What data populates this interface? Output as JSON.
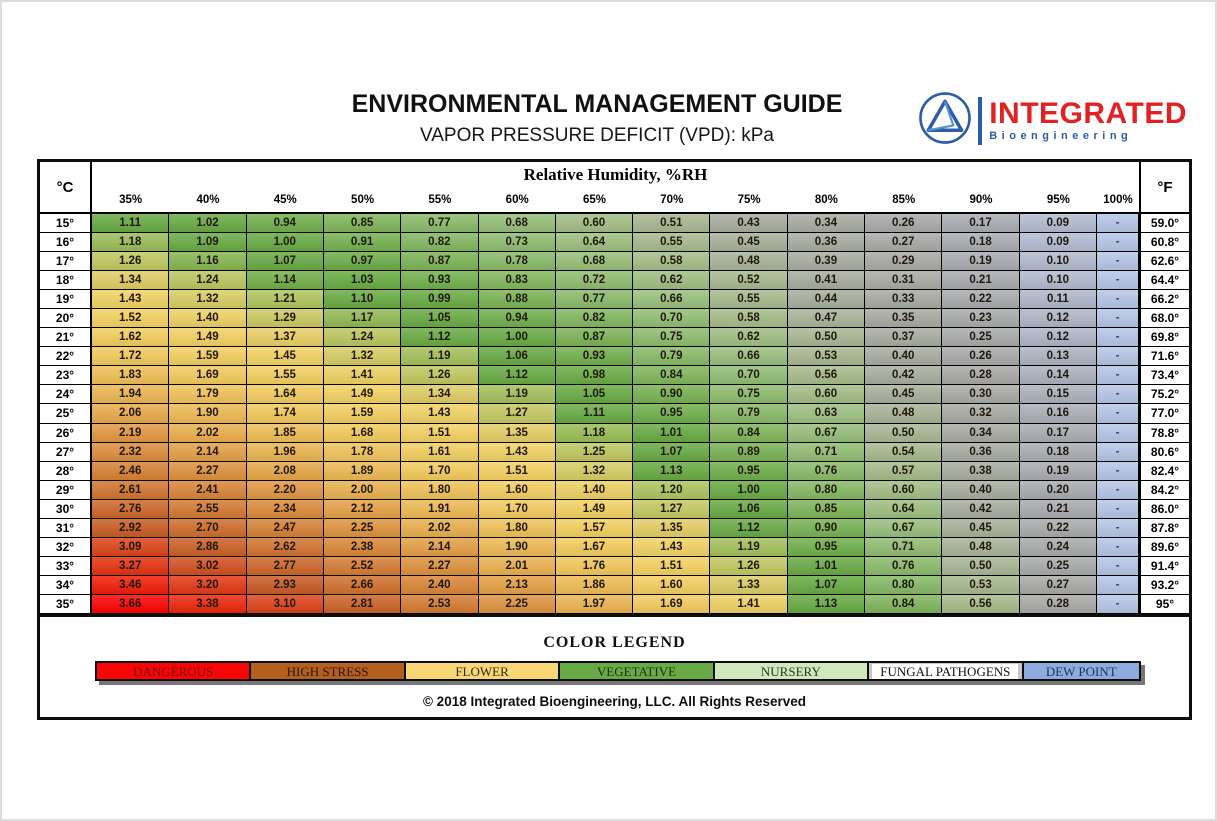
{
  "header": {
    "title": "ENVIRONMENTAL MANAGEMENT GUIDE",
    "subtitle": "VAPOR PRESSURE DEFICIT (VPD): kPa",
    "logo": {
      "name": "INTEGRATED",
      "sub": "Bioengineering",
      "brand_red": "#e22121",
      "brand_blue": "#2b5da8"
    }
  },
  "table": {
    "corner_left": "°C",
    "corner_right": "°F",
    "group_header": "Relative Humidity, %RH"
  },
  "chart_data": {
    "type": "heatmap",
    "title": "ENVIRONMENTAL MANAGEMENT GUIDE",
    "subtitle": "VAPOR PRESSURE DEFICIT (VPD): kPa",
    "x_axis_label": "Relative Humidity, %RH",
    "y_axis_left_label": "°C",
    "y_axis_right_label": "°F",
    "unit": "kPa",
    "columns": [
      "35%",
      "40%",
      "45%",
      "50%",
      "55%",
      "60%",
      "65%",
      "70%",
      "75%",
      "80%",
      "85%",
      "90%",
      "95%",
      "100%"
    ],
    "rows": [
      {
        "c": "15°",
        "f": "59.0°",
        "values": [
          "1.11",
          "1.02",
          "0.94",
          "0.85",
          "0.77",
          "0.68",
          "0.60",
          "0.51",
          "0.43",
          "0.34",
          "0.26",
          "0.17",
          "0.09",
          "-"
        ]
      },
      {
        "c": "16°",
        "f": "60.8°",
        "values": [
          "1.18",
          "1.09",
          "1.00",
          "0.91",
          "0.82",
          "0.73",
          "0.64",
          "0.55",
          "0.45",
          "0.36",
          "0.27",
          "0.18",
          "0.09",
          "-"
        ]
      },
      {
        "c": "17°",
        "f": "62.6°",
        "values": [
          "1.26",
          "1.16",
          "1.07",
          "0.97",
          "0.87",
          "0.78",
          "0.68",
          "0.58",
          "0.48",
          "0.39",
          "0.29",
          "0.19",
          "0.10",
          "-"
        ]
      },
      {
        "c": "18°",
        "f": "64.4°",
        "values": [
          "1.34",
          "1.24",
          "1.14",
          "1.03",
          "0.93",
          "0.83",
          "0.72",
          "0.62",
          "0.52",
          "0.41",
          "0.31",
          "0.21",
          "0.10",
          "-"
        ]
      },
      {
        "c": "19°",
        "f": "66.2°",
        "values": [
          "1.43",
          "1.32",
          "1.21",
          "1.10",
          "0.99",
          "0.88",
          "0.77",
          "0.66",
          "0.55",
          "0.44",
          "0.33",
          "0.22",
          "0.11",
          "-"
        ]
      },
      {
        "c": "20°",
        "f": "68.0°",
        "values": [
          "1.52",
          "1.40",
          "1.29",
          "1.17",
          "1.05",
          "0.94",
          "0.82",
          "0.70",
          "0.58",
          "0.47",
          "0.35",
          "0.23",
          "0.12",
          "-"
        ]
      },
      {
        "c": "21°",
        "f": "69.8°",
        "values": [
          "1.62",
          "1.49",
          "1.37",
          "1.24",
          "1.12",
          "1.00",
          "0.87",
          "0.75",
          "0.62",
          "0.50",
          "0.37",
          "0.25",
          "0.12",
          "-"
        ]
      },
      {
        "c": "22°",
        "f": "71.6°",
        "values": [
          "1.72",
          "1.59",
          "1.45",
          "1.32",
          "1.19",
          "1.06",
          "0.93",
          "0.79",
          "0.66",
          "0.53",
          "0.40",
          "0.26",
          "0.13",
          "-"
        ]
      },
      {
        "c": "23°",
        "f": "73.4°",
        "values": [
          "1.83",
          "1.69",
          "1.55",
          "1.41",
          "1.26",
          "1.12",
          "0.98",
          "0.84",
          "0.70",
          "0.56",
          "0.42",
          "0.28",
          "0.14",
          "-"
        ]
      },
      {
        "c": "24°",
        "f": "75.2°",
        "values": [
          "1.94",
          "1.79",
          "1.64",
          "1.49",
          "1.34",
          "1.19",
          "1.05",
          "0.90",
          "0.75",
          "0.60",
          "0.45",
          "0.30",
          "0.15",
          "-"
        ]
      },
      {
        "c": "25°",
        "f": "77.0°",
        "values": [
          "2.06",
          "1.90",
          "1.74",
          "1.59",
          "1.43",
          "1.27",
          "1.11",
          "0.95",
          "0.79",
          "0.63",
          "0.48",
          "0.32",
          "0.16",
          "-"
        ]
      },
      {
        "c": "26°",
        "f": "78.8°",
        "values": [
          "2.19",
          "2.02",
          "1.85",
          "1.68",
          "1.51",
          "1.35",
          "1.18",
          "1.01",
          "0.84",
          "0.67",
          "0.50",
          "0.34",
          "0.17",
          "-"
        ]
      },
      {
        "c": "27°",
        "f": "80.6°",
        "values": [
          "2.32",
          "2.14",
          "1.96",
          "1.78",
          "1.61",
          "1.43",
          "1.25",
          "1.07",
          "0.89",
          "0.71",
          "0.54",
          "0.36",
          "0.18",
          "-"
        ]
      },
      {
        "c": "28°",
        "f": "82.4°",
        "values": [
          "2.46",
          "2.27",
          "2.08",
          "1.89",
          "1.70",
          "1.51",
          "1.32",
          "1.13",
          "0.95",
          "0.76",
          "0.57",
          "0.38",
          "0.19",
          "-"
        ]
      },
      {
        "c": "29°",
        "f": "84.2°",
        "values": [
          "2.61",
          "2.41",
          "2.20",
          "2.00",
          "1.80",
          "1.60",
          "1.40",
          "1.20",
          "1.00",
          "0.80",
          "0.60",
          "0.40",
          "0.20",
          "-"
        ]
      },
      {
        "c": "30°",
        "f": "86.0°",
        "values": [
          "2.76",
          "2.55",
          "2.34",
          "2.12",
          "1.91",
          "1.70",
          "1.49",
          "1.27",
          "1.06",
          "0.85",
          "0.64",
          "0.42",
          "0.21",
          "-"
        ]
      },
      {
        "c": "31°",
        "f": "87.8°",
        "values": [
          "2.92",
          "2.70",
          "2.47",
          "2.25",
          "2.02",
          "1.80",
          "1.57",
          "1.35",
          "1.12",
          "0.90",
          "0.67",
          "0.45",
          "0.22",
          "-"
        ]
      },
      {
        "c": "32°",
        "f": "89.6°",
        "values": [
          "3.09",
          "2.86",
          "2.62",
          "2.38",
          "2.14",
          "1.90",
          "1.67",
          "1.43",
          "1.19",
          "0.95",
          "0.71",
          "0.48",
          "0.24",
          "-"
        ]
      },
      {
        "c": "33°",
        "f": "91.4°",
        "values": [
          "3.27",
          "3.02",
          "2.77",
          "2.52",
          "2.27",
          "2.01",
          "1.76",
          "1.51",
          "1.26",
          "1.01",
          "0.76",
          "0.50",
          "0.25",
          "-"
        ]
      },
      {
        "c": "34°",
        "f": "93.2°",
        "values": [
          "3.46",
          "3.20",
          "2.93",
          "2.66",
          "2.40",
          "2.13",
          "1.86",
          "1.60",
          "1.33",
          "1.07",
          "0.80",
          "0.53",
          "0.27",
          "-"
        ]
      },
      {
        "c": "35°",
        "f": "95°",
        "values": [
          "3.66",
          "3.38",
          "3.10",
          "2.81",
          "2.53",
          "2.25",
          "1.97",
          "1.69",
          "1.41",
          "1.13",
          "0.84",
          "0.56",
          "0.28",
          "-"
        ]
      }
    ]
  },
  "color_scale": {
    "dash_color": "#b5c6e7",
    "stops": [
      [
        0.0,
        "#b5c6e7"
      ],
      [
        0.09,
        "#b2bcd3"
      ],
      [
        0.13,
        "#aeb4c4"
      ],
      [
        0.17,
        "#aaadb5"
      ],
      [
        0.22,
        "#a9abad"
      ],
      [
        0.28,
        "#a9aaa7"
      ],
      [
        0.34,
        "#a8aba1"
      ],
      [
        0.43,
        "#a8ae9e"
      ],
      [
        0.51,
        "#a9b893"
      ],
      [
        0.58,
        "#a5bd88"
      ],
      [
        0.65,
        "#9ac07e"
      ],
      [
        0.72,
        "#90bd70"
      ],
      [
        0.79,
        "#88ba66"
      ],
      [
        0.86,
        "#7db457"
      ],
      [
        0.93,
        "#72b04d"
      ],
      [
        1.0,
        "#68ab43"
      ],
      [
        1.13,
        "#68ab43"
      ],
      [
        1.2,
        "#aec55e"
      ],
      [
        1.28,
        "#c9c960"
      ],
      [
        1.36,
        "#e9d065"
      ],
      [
        1.45,
        "#f4d462"
      ],
      [
        1.55,
        "#f5d160"
      ],
      [
        1.65,
        "#f4cd5d"
      ],
      [
        1.75,
        "#f3c85a"
      ],
      [
        1.86,
        "#efbd54"
      ],
      [
        1.97,
        "#ecb450"
      ],
      [
        2.08,
        "#e8a847"
      ],
      [
        2.2,
        "#e29740"
      ],
      [
        2.33,
        "#dd8c39"
      ],
      [
        2.47,
        "#d88033"
      ],
      [
        2.62,
        "#d3732d"
      ],
      [
        2.77,
        "#cf6628"
      ],
      [
        2.93,
        "#ca5a23"
      ],
      [
        3.1,
        "#dd4318"
      ],
      [
        3.28,
        "#e7300f"
      ],
      [
        3.47,
        "#f21b06"
      ],
      [
        3.66,
        "#fe0101"
      ]
    ]
  },
  "legend": {
    "title": "COLOR LEGEND",
    "items": [
      {
        "label": "DANGEROUS",
        "color": "#f90505",
        "text_color": "#74150b"
      },
      {
        "label": "HIGH STRESS",
        "color": "#b45f1e",
        "text_color": "#2b1507"
      },
      {
        "label": "FLOWER",
        "color": "#f8d876",
        "text_color": "#332709"
      },
      {
        "label": "VEGETATIVE",
        "color": "#6aaa46",
        "text_color": "#17300f"
      },
      {
        "label": "NURSERY",
        "color": "#cfe8c0",
        "text_color": "#273c1c"
      },
      {
        "label": "FUNGAL PATHOGENS",
        "color": "#c7c7c7",
        "text_color": "#111111",
        "label_bg": "#ffffff"
      },
      {
        "label": "DEW POINT",
        "color": "#8faadc",
        "text_color": "#17375e"
      }
    ]
  },
  "footer": {
    "copyright": "© 2018 Integrated Bioengineering, LLC. All Rights Reserved"
  }
}
